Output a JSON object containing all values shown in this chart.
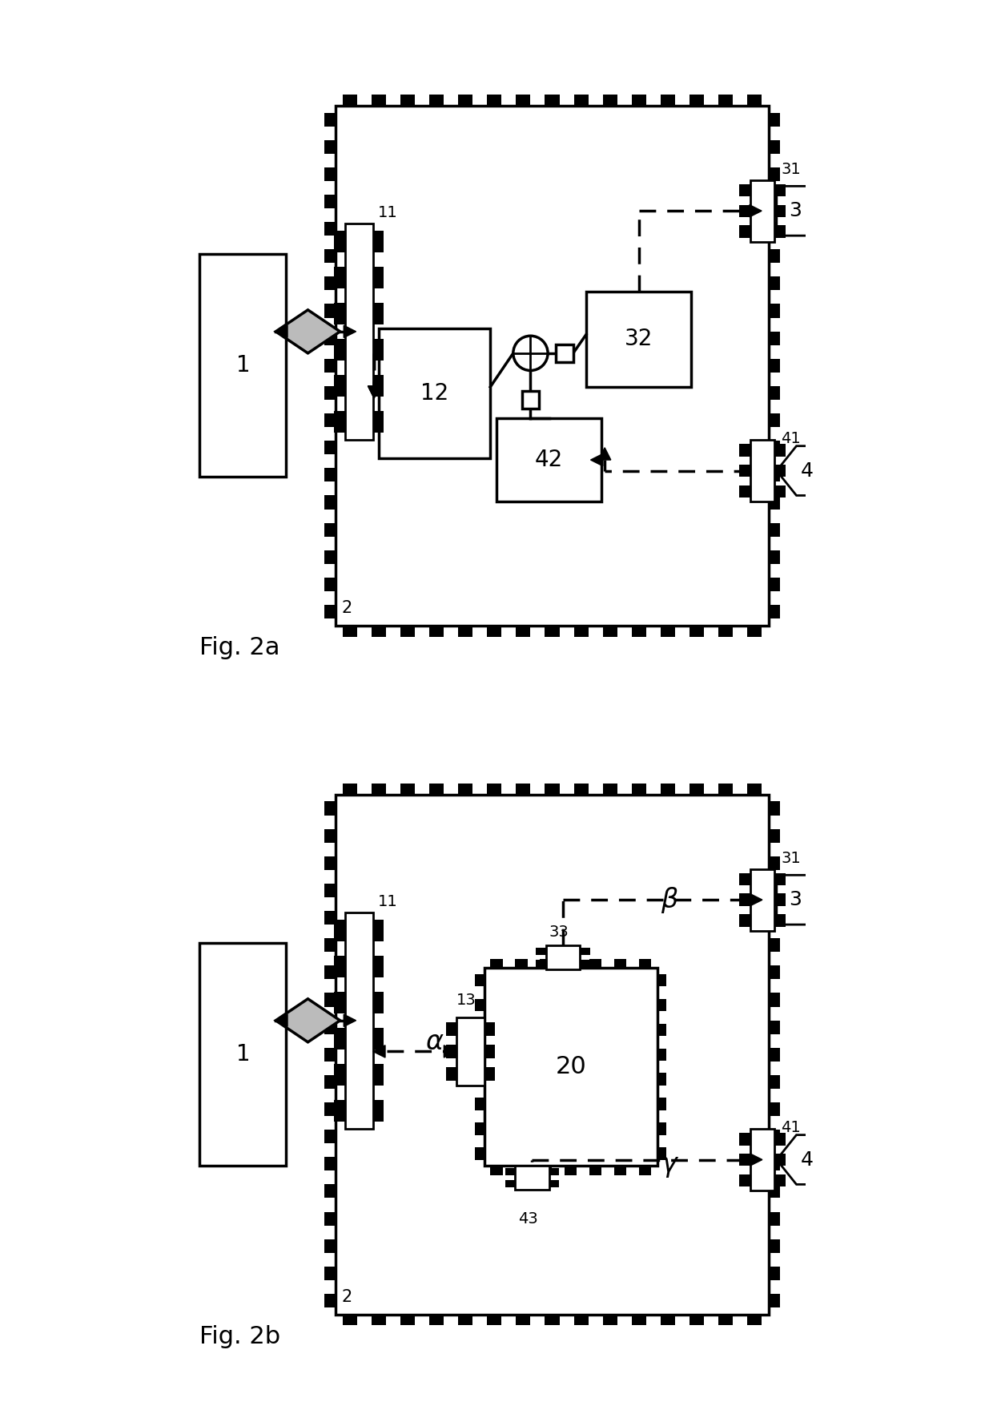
{
  "fig_width": 12.4,
  "fig_height": 17.55,
  "bg_color": "#ffffff",
  "fig2a_label": "Fig. 2a",
  "fig2b_label": "Fig. 2b"
}
